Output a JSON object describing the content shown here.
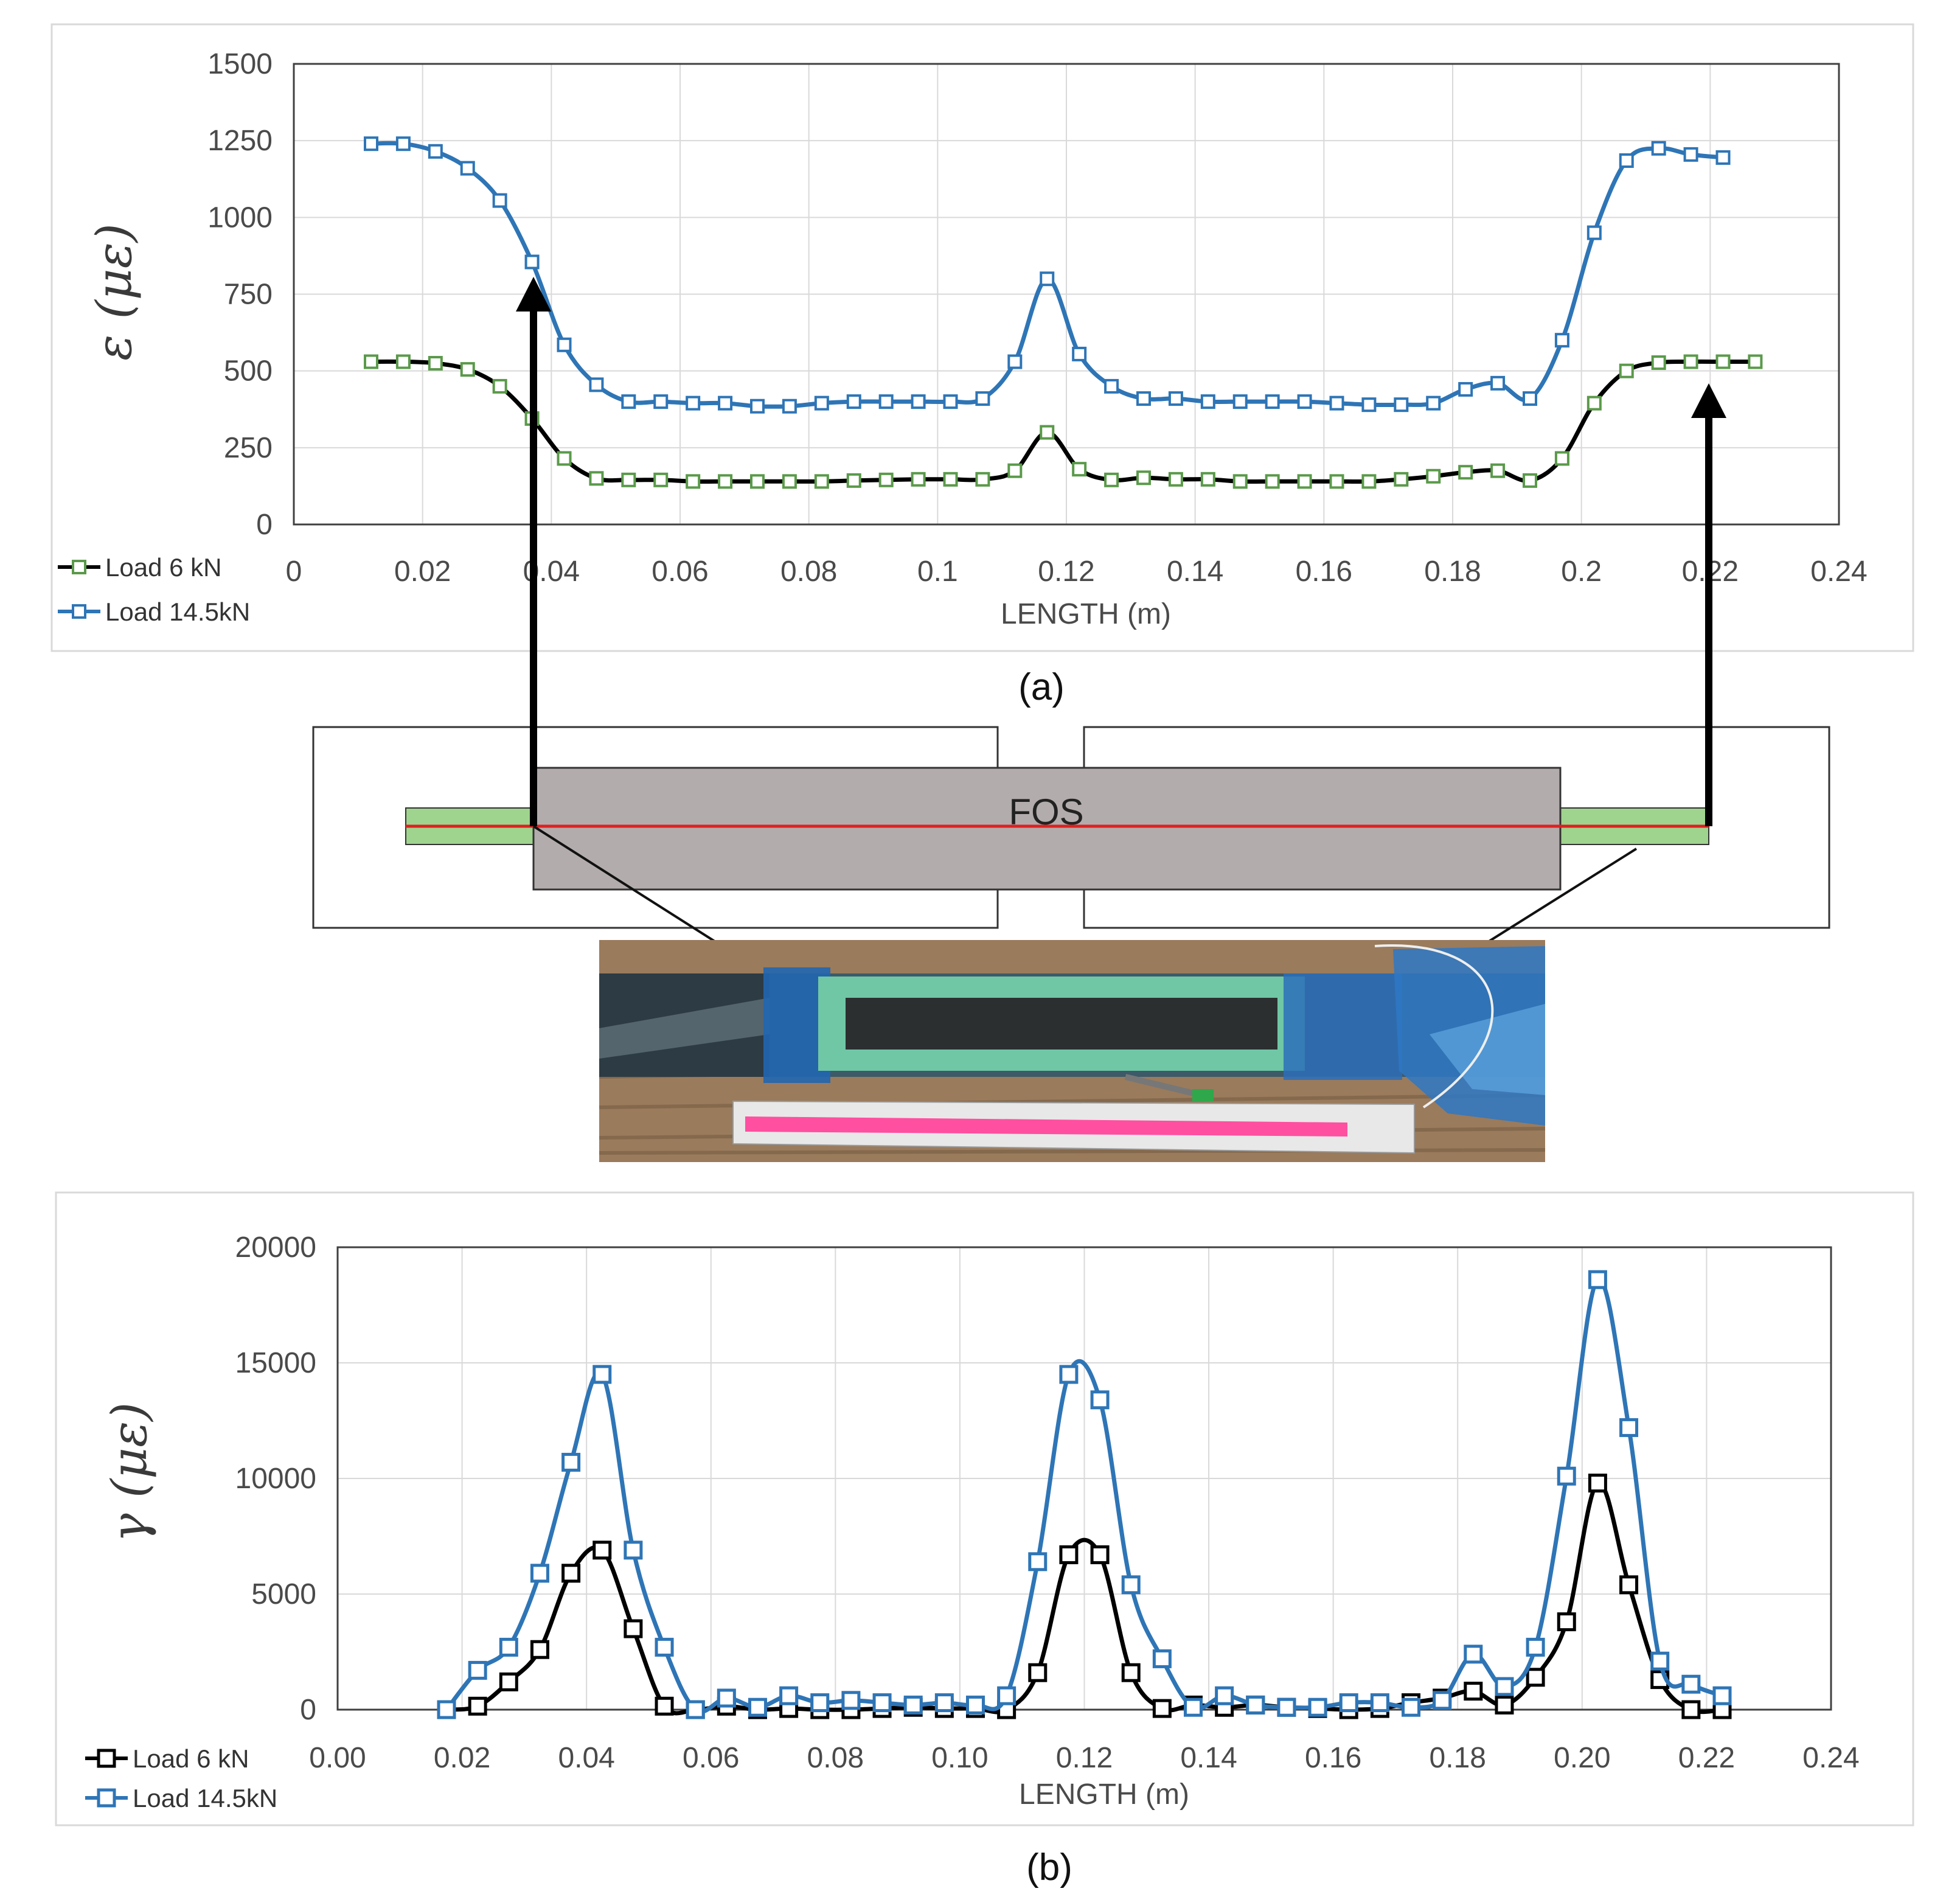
{
  "chart_data": [
    {
      "id": "a",
      "type": "line",
      "caption": "(a)",
      "xlabel": "LENGTH (m)",
      "ylabel": "ε (με)",
      "xlim": [
        0,
        0.24
      ],
      "ylim": [
        0,
        1500
      ],
      "xticks": [
        "0",
        "0.02",
        "0.04",
        "0.06",
        "0.08",
        "0.1",
        "0.12",
        "0.14",
        "0.16",
        "0.18",
        "0.2",
        "0.22",
        "0.24"
      ],
      "yticks": [
        "0",
        "250",
        "500",
        "750",
        "1000",
        "1250",
        "1500"
      ],
      "grid": true,
      "legend": "bottom-left",
      "series": [
        {
          "name": "Load 6 kN",
          "color": "#000000",
          "marker_color": "#5a9a4a",
          "x": [
            0.012,
            0.017,
            0.022,
            0.027,
            0.032,
            0.037,
            0.042,
            0.047,
            0.052,
            0.057,
            0.062,
            0.067,
            0.072,
            0.077,
            0.082,
            0.087,
            0.092,
            0.097,
            0.102,
            0.107,
            0.112,
            0.117,
            0.122,
            0.127,
            0.132,
            0.137,
            0.142,
            0.147,
            0.152,
            0.157,
            0.162,
            0.167,
            0.172,
            0.177,
            0.182,
            0.187,
            0.192,
            0.197,
            0.202,
            0.207,
            0.212,
            0.217,
            0.222,
            0.227
          ],
          "y": [
            530,
            530,
            525,
            505,
            450,
            345,
            215,
            150,
            145,
            145,
            140,
            140,
            140,
            140,
            140,
            143,
            145,
            147,
            147,
            147,
            175,
            300,
            180,
            145,
            152,
            147,
            147,
            140,
            140,
            140,
            140,
            140,
            147,
            157,
            170,
            175,
            143,
            215,
            395,
            500,
            527,
            530,
            530,
            530
          ]
        },
        {
          "name": "Load 14.5kN",
          "color": "#2e75b6",
          "marker_color": "#2e75b6",
          "x": [
            0.012,
            0.017,
            0.022,
            0.027,
            0.032,
            0.037,
            0.042,
            0.047,
            0.052,
            0.057,
            0.062,
            0.067,
            0.072,
            0.077,
            0.082,
            0.087,
            0.092,
            0.097,
            0.102,
            0.107,
            0.112,
            0.117,
            0.122,
            0.127,
            0.132,
            0.137,
            0.142,
            0.147,
            0.152,
            0.157,
            0.162,
            0.167,
            0.172,
            0.177,
            0.182,
            0.187,
            0.192,
            0.197,
            0.202,
            0.207,
            0.212,
            0.217,
            0.222
          ],
          "y": [
            1240,
            1240,
            1215,
            1160,
            1055,
            855,
            585,
            455,
            400,
            400,
            395,
            395,
            385,
            385,
            395,
            400,
            400,
            400,
            400,
            410,
            530,
            800,
            555,
            450,
            410,
            410,
            400,
            400,
            400,
            400,
            395,
            390,
            390,
            395,
            440,
            460,
            410,
            600,
            950,
            1185,
            1225,
            1205,
            1195
          ]
        }
      ]
    },
    {
      "id": "b",
      "type": "line",
      "caption": "(b)",
      "xlabel": "LENGTH (m)",
      "ylabel": "γ (με)",
      "xlim": [
        0,
        0.24
      ],
      "ylim": [
        0,
        20000
      ],
      "xticks": [
        "0.00",
        "0.02",
        "0.04",
        "0.06",
        "0.08",
        "0.10",
        "0.12",
        "0.14",
        "0.16",
        "0.18",
        "0.20",
        "0.22",
        "0.24"
      ],
      "yticks": [
        "0",
        "5000",
        "10000",
        "15000",
        "20000"
      ],
      "grid": true,
      "legend": "bottom-left",
      "series": [
        {
          "name": "Load 6 kN",
          "color": "#000000",
          "marker_color": "#000000",
          "x": [
            0.0175,
            0.0225,
            0.0275,
            0.0325,
            0.0375,
            0.0425,
            0.0475,
            0.0525,
            0.0575,
            0.0625,
            0.0675,
            0.0725,
            0.0775,
            0.0825,
            0.0875,
            0.0925,
            0.0975,
            0.1025,
            0.1075,
            0.1125,
            0.1175,
            0.1225,
            0.1275,
            0.1325,
            0.1375,
            0.1425,
            0.1475,
            0.1525,
            0.1575,
            0.1625,
            0.1675,
            0.1725,
            0.1775,
            0.1825,
            0.1875,
            0.1925,
            0.1975,
            0.2025,
            0.2075,
            0.2125,
            0.2175,
            0.2225
          ],
          "y": [
            0,
            150,
            1200,
            2600,
            5900,
            6900,
            3500,
            150,
            0,
            150,
            0,
            50,
            0,
            0,
            50,
            100,
            50,
            50,
            0,
            1600,
            6700,
            6700,
            1600,
            50,
            200,
            100,
            200,
            100,
            50,
            0,
            50,
            300,
            500,
            800,
            200,
            1400,
            3800,
            9800,
            5400,
            1300,
            0,
            0
          ]
        },
        {
          "name": "Load 14.5kN",
          "color": "#2e75b6",
          "marker_color": "#2e75b6",
          "x": [
            0.0175,
            0.0225,
            0.0275,
            0.0325,
            0.0375,
            0.0425,
            0.0475,
            0.0525,
            0.0575,
            0.0625,
            0.0675,
            0.0725,
            0.0775,
            0.0825,
            0.0875,
            0.0925,
            0.0975,
            0.1025,
            0.1075,
            0.1125,
            0.1175,
            0.1225,
            0.1275,
            0.1325,
            0.1375,
            0.1425,
            0.1475,
            0.1525,
            0.1575,
            0.1625,
            0.1675,
            0.1725,
            0.1775,
            0.1825,
            0.1875,
            0.1925,
            0.1975,
            0.2025,
            0.2075,
            0.2125,
            0.2175,
            0.2225
          ],
          "y": [
            0,
            1700,
            2700,
            5900,
            10700,
            14500,
            6900,
            2700,
            0,
            500,
            100,
            600,
            300,
            400,
            300,
            200,
            300,
            200,
            600,
            6400,
            14500,
            13400,
            5400,
            2200,
            100,
            600,
            200,
            100,
            100,
            300,
            300,
            100,
            400,
            2400,
            1000,
            2700,
            10100,
            18600,
            12200,
            2100,
            1100,
            600
          ]
        }
      ]
    }
  ],
  "schematic": {
    "fos_label": "FOS"
  }
}
